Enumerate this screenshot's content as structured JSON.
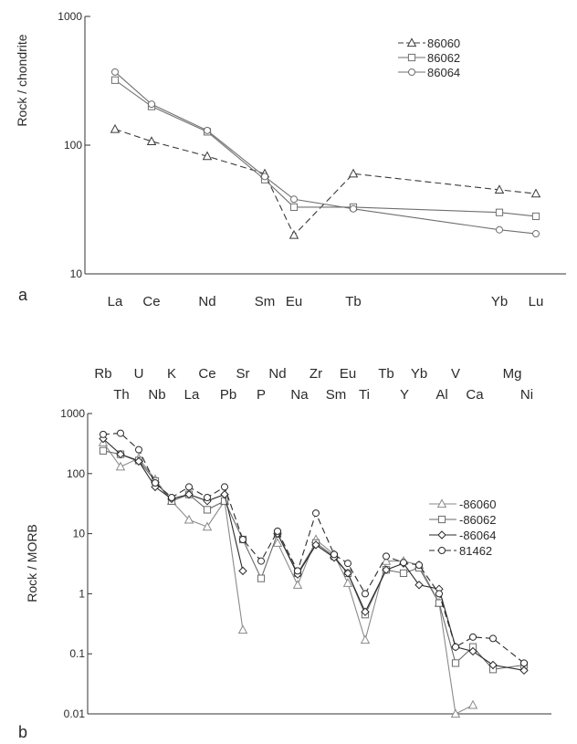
{
  "chart_data": [
    {
      "panel_label": "a",
      "type": "line",
      "scale": "log",
      "ylabel": "Rock / chondrite",
      "ylim": [
        10,
        1000
      ],
      "yticks": [
        "10",
        "100",
        "1000"
      ],
      "categories": [
        "La",
        "Ce",
        "Nd",
        "Sm",
        "Eu",
        "Tb",
        "Yb",
        "Lu"
      ],
      "legend_position": "top-right",
      "series": [
        {
          "name": "86060",
          "marker": "triangle",
          "dash": true,
          "values": [
            133,
            107,
            82,
            60,
            20,
            60,
            45,
            42
          ]
        },
        {
          "name": "86062",
          "marker": "square",
          "dash": false,
          "values": [
            320,
            200,
            127,
            54,
            33,
            33,
            30,
            28
          ]
        },
        {
          "name": "86064",
          "marker": "circle",
          "dash": false,
          "values": [
            370,
            208,
            130,
            57,
            38,
            32,
            22,
            20.5
          ]
        }
      ]
    },
    {
      "panel_label": "b",
      "type": "line",
      "scale": "log",
      "ylabel": "Rock / MORB",
      "ylim": [
        0.01,
        1000
      ],
      "yticks": [
        "0.01",
        "0.1",
        "1",
        "10",
        "100",
        "1000"
      ],
      "categories": [
        "Rb",
        "Th",
        "U",
        "Nb",
        "K",
        "La",
        "Ce",
        "Pb",
        "Sr",
        "P",
        "Nd",
        "Na",
        "Zr",
        "Sm",
        "Eu",
        "Ti",
        "Tb",
        "Y",
        "Yb",
        "Al",
        "V",
        "Ca",
        "Mg",
        "Ni"
      ],
      "top_row": [
        "Rb",
        "U",
        "K",
        "Ce",
        "Sr",
        "Nd",
        "Zr",
        "Eu",
        "Tb",
        "Yb",
        "V",
        "Mg"
      ],
      "bottom_row": [
        "Th",
        "Nb",
        "La",
        "Pb",
        "P",
        "Na",
        "Sm",
        "Ti",
        "Y",
        "Al",
        "Ca",
        "Ni"
      ],
      "legend_position": "right",
      "series": [
        {
          "name": "-86060",
          "marker": "triangle",
          "dash": false,
          "color": "#8a8a8a",
          "values": [
            330,
            130,
            180,
            80,
            35,
            17,
            13,
            35,
            0.25,
            null,
            7,
            1.4,
            8,
            4.5,
            1.5,
            0.17,
            3.5,
            3.5,
            3,
            0.7,
            0.01,
            0.014,
            null,
            null
          ]
        },
        {
          "name": "-86062",
          "marker": "square",
          "dash": false,
          "color": "#6a6a6a",
          "values": [
            240,
            210,
            165,
            75,
            35,
            45,
            25,
            35,
            8,
            1.8,
            10,
            2.2,
            7,
            4.2,
            2.2,
            0.45,
            2.5,
            2.2,
            2.7,
            0.7,
            0.07,
            0.13,
            0.055,
            0.065
          ]
        },
        {
          "name": "-86064",
          "marker": "diamond",
          "dash": false,
          "color": "#2a2a2a",
          "values": [
            380,
            210,
            160,
            60,
            38,
            45,
            35,
            45,
            2.4,
            null,
            10,
            2.1,
            6.5,
            4,
            2.2,
            0.5,
            2.5,
            3.2,
            1.4,
            1.2,
            0.13,
            0.11,
            0.065,
            0.053
          ]
        },
        {
          "name": "81462",
          "marker": "circle",
          "dash": true,
          "color": "#2a2a2a",
          "values": [
            450,
            470,
            250,
            70,
            40,
            60,
            40,
            60,
            8,
            3.5,
            11,
            2.4,
            22,
            4.5,
            3.2,
            1,
            4.2,
            3.3,
            3,
            1,
            0.13,
            0.19,
            0.18,
            0.07
          ]
        }
      ]
    }
  ]
}
